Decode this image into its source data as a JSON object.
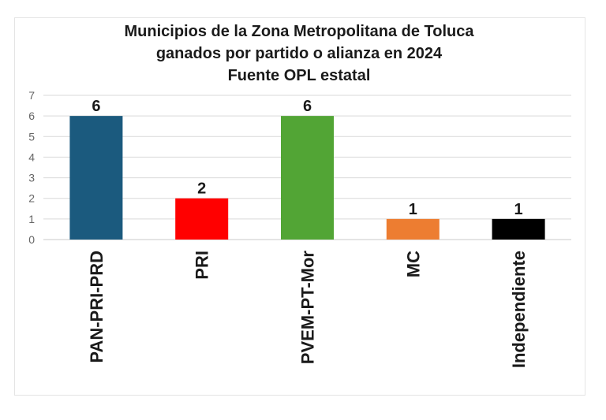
{
  "chart_data": {
    "type": "bar",
    "title_lines": [
      "Municipios de la Zona Metropolitana de Toluca",
      "ganados por partido o alianza en 2024",
      "Fuente OPL estatal"
    ],
    "categories": [
      "PAN-PRI-PRD",
      "PRI",
      "PVEM-PT-Mor",
      "MC",
      "Independiente"
    ],
    "values": [
      6,
      2,
      6,
      1,
      1
    ],
    "colors": [
      "#1b5a7e",
      "#ff0000",
      "#52a535",
      "#ed7d31",
      "#000000"
    ],
    "xlabel": "",
    "ylabel": "",
    "ylim": [
      0,
      7
    ],
    "yticks": [
      0,
      1,
      2,
      3,
      4,
      5,
      6,
      7
    ],
    "grid": true,
    "legend": "none",
    "data_labels": true
  }
}
